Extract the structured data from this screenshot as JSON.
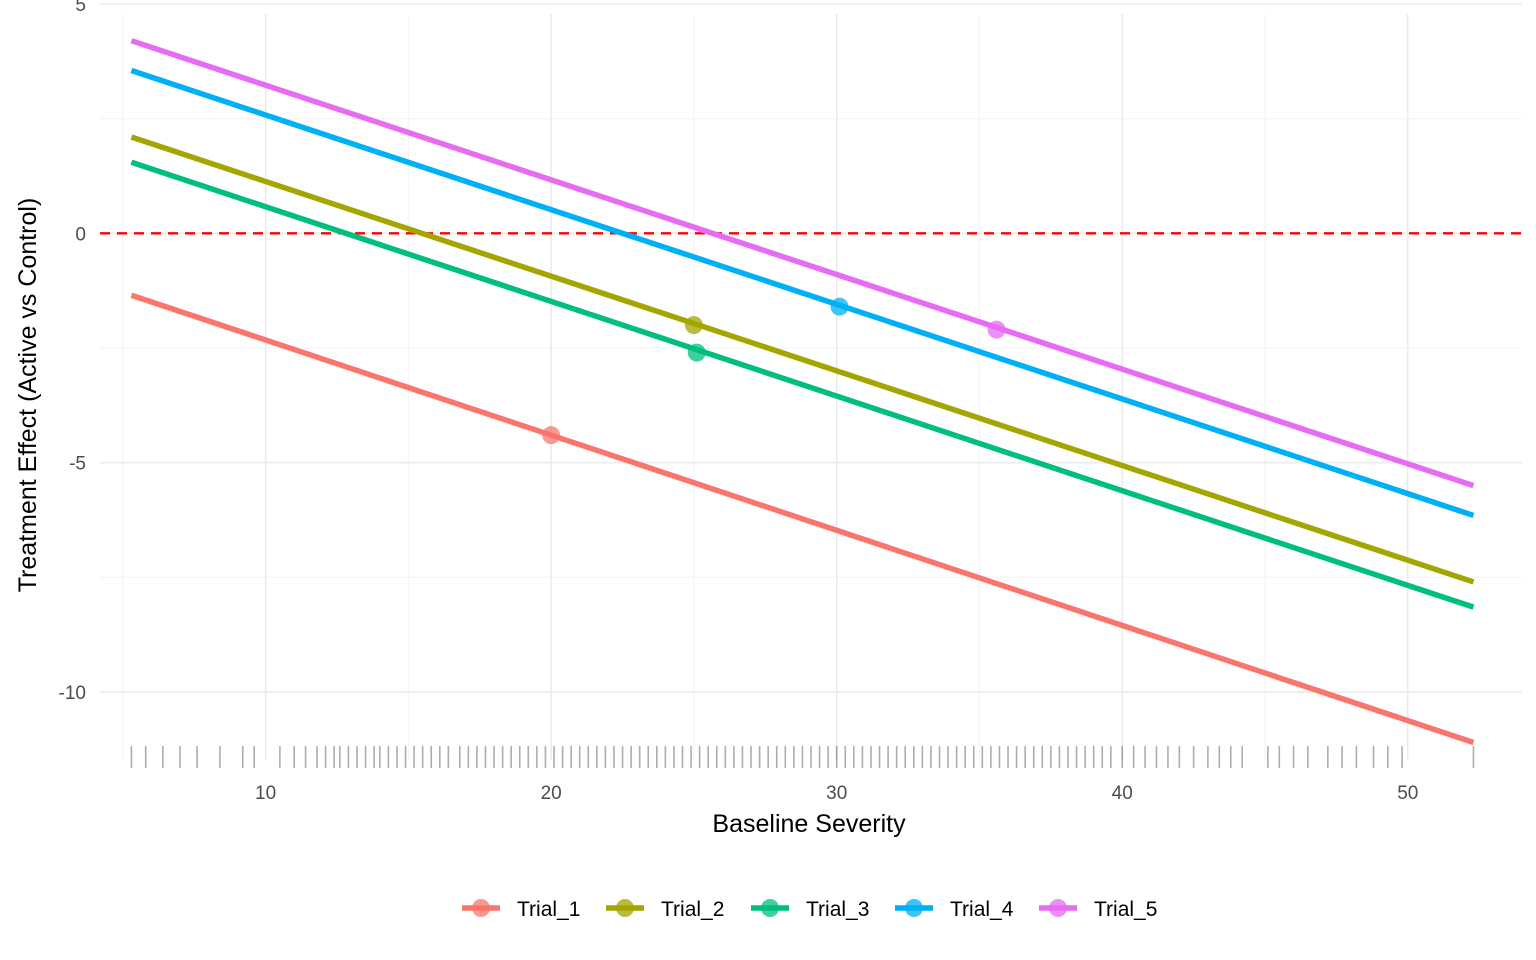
{
  "chart_data": {
    "type": "line",
    "title": "",
    "xlabel": "Baseline Severity",
    "ylabel": "Treatment Effect (Active vs Control)",
    "xlim": [
      4.2,
      54.0
    ],
    "ylim": [
      -11.7,
      5.0
    ],
    "x_ticks": [
      10,
      20,
      30,
      40,
      50
    ],
    "y_ticks": [
      5,
      0,
      -5,
      -10
    ],
    "x_tick_labels": [
      "10",
      "20",
      "30",
      "40",
      "50"
    ],
    "y_tick_labels": [
      "5",
      "0",
      "-5",
      "-10"
    ],
    "grid": true,
    "legend_position": "bottom",
    "reference_line": {
      "y": 0,
      "color": "#ff0000",
      "style": "dashed"
    },
    "series": [
      {
        "name": "Trial_1",
        "color": "#F8766D",
        "line": {
          "x": [
            5.3,
            52.3
          ],
          "y": [
            -1.35,
            -11.1
          ]
        },
        "point": {
          "x": 20.0,
          "y": -4.4
        }
      },
      {
        "name": "Trial_2",
        "color": "#A3A500",
        "line": {
          "x": [
            5.3,
            52.3
          ],
          "y": [
            2.1,
            -7.6
          ]
        },
        "point": {
          "x": 25.0,
          "y": -2.0
        }
      },
      {
        "name": "Trial_3",
        "color": "#00BF7D",
        "line": {
          "x": [
            5.3,
            52.3
          ],
          "y": [
            1.55,
            -8.15
          ]
        },
        "point": {
          "x": 25.1,
          "y": -2.6
        }
      },
      {
        "name": "Trial_4",
        "color": "#00B0F6",
        "line": {
          "x": [
            5.3,
            52.3
          ],
          "y": [
            3.55,
            -6.15
          ]
        },
        "point": {
          "x": 30.1,
          "y": -1.6
        }
      },
      {
        "name": "Trial_5",
        "color": "#E76BF3",
        "line": {
          "x": [
            5.3,
            52.3
          ],
          "y": [
            4.2,
            -5.5
          ]
        },
        "point": {
          "x": 35.6,
          "y": -2.1
        }
      }
    ],
    "rug_x": [
      5.3,
      5.8,
      6.4,
      7.0,
      7.6,
      8.4,
      9.2,
      9.6,
      10.5,
      11.0,
      11.4,
      11.8,
      12.1,
      12.4,
      12.6,
      12.9,
      13.2,
      13.5,
      13.8,
      14.0,
      14.3,
      14.6,
      14.9,
      15.2,
      15.5,
      15.8,
      16.1,
      16.4,
      16.8,
      17.1,
      17.4,
      17.7,
      18.0,
      18.3,
      18.6,
      18.9,
      19.2,
      19.5,
      19.8,
      20.1,
      20.4,
      20.7,
      21.0,
      21.3,
      21.6,
      21.9,
      22.2,
      22.5,
      22.8,
      23.1,
      23.4,
      23.7,
      24.0,
      24.3,
      24.6,
      24.9,
      25.2,
      25.5,
      25.8,
      26.1,
      26.4,
      26.7,
      27.0,
      27.3,
      27.6,
      27.9,
      28.2,
      28.5,
      28.8,
      29.1,
      29.4,
      29.7,
      30.0,
      30.3,
      30.6,
      30.9,
      31.2,
      31.5,
      31.8,
      32.1,
      32.4,
      32.7,
      33.0,
      33.3,
      33.6,
      33.9,
      34.2,
      34.5,
      34.8,
      35.1,
      35.4,
      35.7,
      36.0,
      36.3,
      36.6,
      36.9,
      37.2,
      37.5,
      37.8,
      38.1,
      38.4,
      38.7,
      39.0,
      39.3,
      39.6,
      40.0,
      40.4,
      40.8,
      41.2,
      41.6,
      42.0,
      42.5,
      43.0,
      43.4,
      43.8,
      44.2,
      45.1,
      45.5,
      46.0,
      46.5,
      47.2,
      47.7,
      48.2,
      48.8,
      49.3,
      49.8,
      52.3
    ]
  },
  "legend": {
    "items": [
      {
        "label": "Trial_1",
        "color": "#F8766D"
      },
      {
        "label": "Trial_2",
        "color": "#A3A500"
      },
      {
        "label": "Trial_3",
        "color": "#00BF7D"
      },
      {
        "label": "Trial_4",
        "color": "#00B0F6"
      },
      {
        "label": "Trial_5",
        "color": "#E76BF3"
      }
    ]
  }
}
